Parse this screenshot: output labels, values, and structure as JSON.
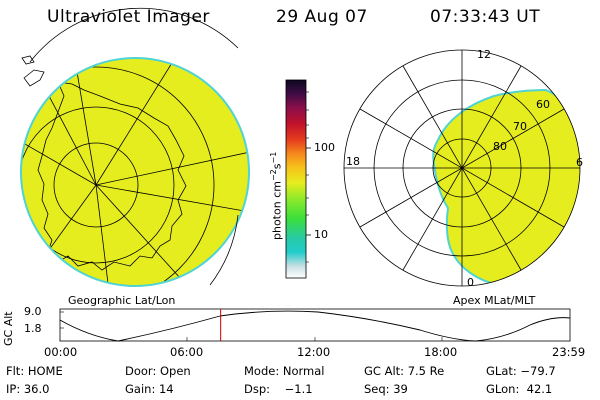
{
  "header": {
    "title": "Ultraviolet Imager",
    "date": "29 Aug 07",
    "time": "07:33:43 UT"
  },
  "left_panel": {
    "caption": "Geographic Lat/Lon"
  },
  "right_panel": {
    "caption": "Apex MLat/MLT",
    "mlt_labels": [
      "12",
      "18",
      "6",
      "0"
    ],
    "lat_labels": [
      "60",
      "70",
      "80"
    ]
  },
  "colorbar": {
    "unit_main": "photon cm",
    "unit_sup_a": "−2",
    "unit_mid": "s",
    "unit_sup_b": "−1",
    "ticks": [
      "100",
      "10"
    ]
  },
  "altitude_plot": {
    "ylabel": "GC Alt",
    "ytick_top": "9.0",
    "ytick_bottom": "1.8",
    "xticks": [
      "00:00",
      "06:00",
      "12:00",
      "18:00",
      "23:59"
    ],
    "current_time_marker_fraction": 0.315
  },
  "status": {
    "row1": {
      "flt": "Flt: HOME",
      "door": "Door: Open",
      "mode": "Mode: Normal",
      "gc_alt": "GC Alt: 7.5 Re",
      "glat": "GLat: −79.7"
    },
    "row2": {
      "ip": "IP: 36.0",
      "gain": "Gain: 14",
      "dsp": "Dsp:    −1.1",
      "seq": "Seq: 39",
      "glon": "GLon:  42.1"
    }
  },
  "colors": {
    "fill": "#e6ed1e",
    "edge": "#4fd3d3",
    "marker": "#cc0000"
  }
}
